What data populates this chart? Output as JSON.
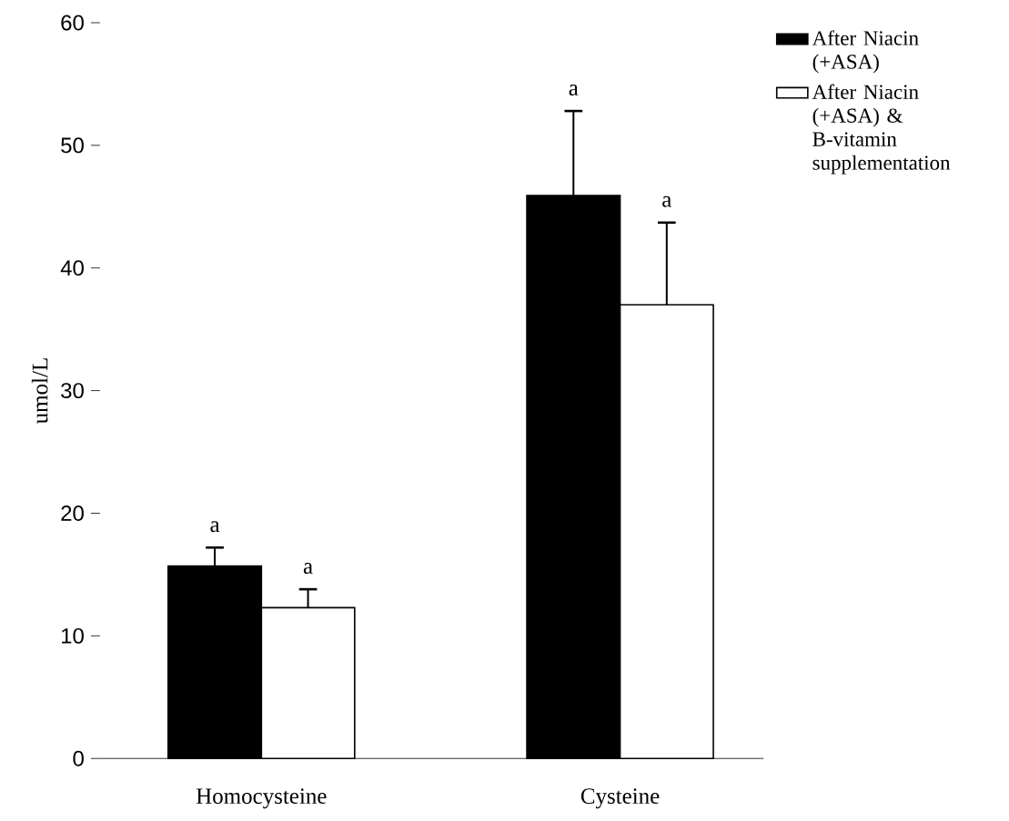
{
  "chart_data": {
    "type": "bar",
    "ylabel": "umol/L",
    "categories": [
      "Homocysteine",
      "Cysteine"
    ],
    "ylim": [
      0,
      60
    ],
    "yticks": [
      0,
      10,
      20,
      30,
      40,
      50,
      60
    ],
    "legend": "top right",
    "series": [
      {
        "name": "After Niacin (+ASA)",
        "color": "#000000",
        "values": [
          15.7,
          45.9
        ],
        "errors": [
          [
            15.7,
            17.2
          ],
          [
            45.9,
            52.8
          ]
        ]
      },
      {
        "name": "After Niacin (+ASA) & B-vitamin supplementation",
        "color": "#ffffff",
        "values": [
          12.3,
          37.0
        ],
        "errors": [
          [
            12.3,
            13.8
          ],
          [
            37.0,
            43.7
          ]
        ]
      }
    ],
    "annotations": [
      "a",
      "a",
      "a",
      "a"
    ]
  }
}
